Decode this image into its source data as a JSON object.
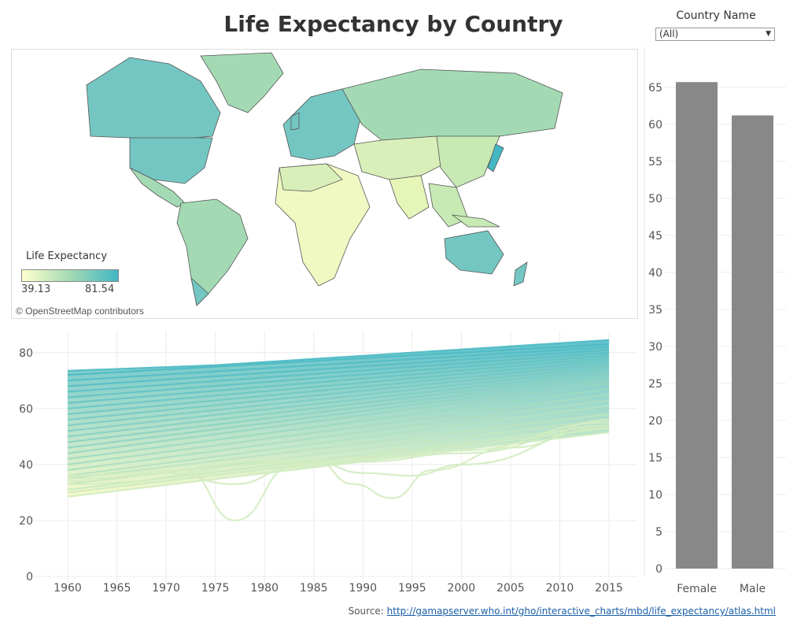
{
  "title": "Life Expectancy by Country",
  "filter": {
    "label": "Country Name",
    "selected": "(All)"
  },
  "map": {
    "legend_title": "Life Expectancy",
    "legend_min": "39.13",
    "legend_max": "81.54",
    "attribution": "© OpenStreetMap contributors",
    "colors": {
      "low": "#ffffcc",
      "mid": "#a3dab4",
      "high": "#41b6c4",
      "border": "#555555"
    }
  },
  "source": {
    "label": "Source: ",
    "link_text": "http://gamapserver.who.int/gho/interactive_charts/mbd/life_expectancy/atlas.html"
  },
  "chart_data": [
    {
      "type": "line",
      "title": "",
      "xlabel": "",
      "ylabel": "",
      "x_ticks": [
        1960,
        1965,
        1970,
        1975,
        1980,
        1985,
        1990,
        1995,
        2000,
        2005,
        2010,
        2015
      ],
      "y_ticks": [
        0,
        20,
        40,
        60,
        80
      ],
      "xlim": [
        1960,
        2015
      ],
      "ylim": [
        0,
        85
      ],
      "grid": true,
      "colors": {
        "low": "#f5f9c0",
        "high": "#45b7c4"
      },
      "series_note_free": true,
      "series": [
        {
          "x": [
            1960,
            1975,
            2015
          ],
          "y": [
            73.5,
            75.5,
            84.5
          ]
        },
        {
          "x": [
            1960,
            2015
          ],
          "y": [
            72,
            83
          ]
        },
        {
          "x": [
            1960,
            2015
          ],
          "y": [
            70,
            82
          ]
        },
        {
          "x": [
            1960,
            2015
          ],
          "y": [
            68,
            81
          ]
        },
        {
          "x": [
            1960,
            2015
          ],
          "y": [
            66,
            80
          ]
        },
        {
          "x": [
            1960,
            2015
          ],
          "y": [
            64,
            79
          ]
        },
        {
          "x": [
            1960,
            2015
          ],
          "y": [
            62,
            78
          ]
        },
        {
          "x": [
            1960,
            2015
          ],
          "y": [
            60,
            77
          ]
        },
        {
          "x": [
            1960,
            2015
          ],
          "y": [
            58,
            76
          ]
        },
        {
          "x": [
            1960,
            2015
          ],
          "y": [
            56,
            75
          ]
        },
        {
          "x": [
            1960,
            2015
          ],
          "y": [
            54,
            74
          ]
        },
        {
          "x": [
            1960,
            2015
          ],
          "y": [
            52,
            73
          ]
        },
        {
          "x": [
            1960,
            2015
          ],
          "y": [
            50,
            72
          ]
        },
        {
          "x": [
            1960,
            2015
          ],
          "y": [
            48,
            71
          ]
        },
        {
          "x": [
            1960,
            2015
          ],
          "y": [
            46,
            70
          ]
        },
        {
          "x": [
            1960,
            2015
          ],
          "y": [
            44,
            69
          ]
        },
        {
          "x": [
            1960,
            2015
          ],
          "y": [
            42,
            67
          ]
        },
        {
          "x": [
            1960,
            2015
          ],
          "y": [
            40,
            65
          ]
        },
        {
          "x": [
            1960,
            2015
          ],
          "y": [
            38,
            63
          ]
        },
        {
          "x": [
            1960,
            2015
          ],
          "y": [
            36,
            61
          ]
        },
        {
          "x": [
            1960,
            2015
          ],
          "y": [
            35,
            58
          ]
        },
        {
          "x": [
            1960,
            2015
          ],
          "y": [
            33,
            56
          ]
        },
        {
          "x": [
            1960,
            2015
          ],
          "y": [
            31,
            54
          ]
        },
        {
          "x": [
            1960,
            2015
          ],
          "y": [
            30,
            53
          ]
        },
        {
          "x": [
            1960,
            2015
          ],
          "y": [
            28.5,
            51.5
          ]
        },
        {
          "x": [
            1960,
            1972,
            1977,
            1983,
            1990,
            2000,
            2015
          ],
          "y": [
            36,
            38,
            20,
            40,
            42,
            45,
            55
          ]
        },
        {
          "x": [
            1960,
            1970,
            1977,
            1983,
            1990,
            2000,
            2015
          ],
          "y": [
            34,
            37,
            33,
            39,
            41,
            44,
            54
          ]
        },
        {
          "x": [
            1960,
            1985,
            1989,
            1993,
            1997,
            2005,
            2015
          ],
          "y": [
            35,
            42,
            33,
            28,
            38,
            46,
            56
          ]
        },
        {
          "x": [
            1960,
            1985,
            1990,
            1995,
            2000,
            2015
          ],
          "y": [
            33,
            41,
            37,
            36,
            40,
            53
          ]
        }
      ]
    },
    {
      "type": "bar",
      "title": "",
      "xlabel": "",
      "ylabel": "",
      "categories": [
        "Female",
        "Male"
      ],
      "values": [
        65.7,
        61.2
      ],
      "y_ticks": [
        0,
        5,
        10,
        15,
        20,
        25,
        30,
        35,
        40,
        45,
        50,
        55,
        60,
        65
      ],
      "ylim": [
        0,
        67
      ],
      "grid": true,
      "colors": {
        "bar": "#888888"
      }
    }
  ]
}
